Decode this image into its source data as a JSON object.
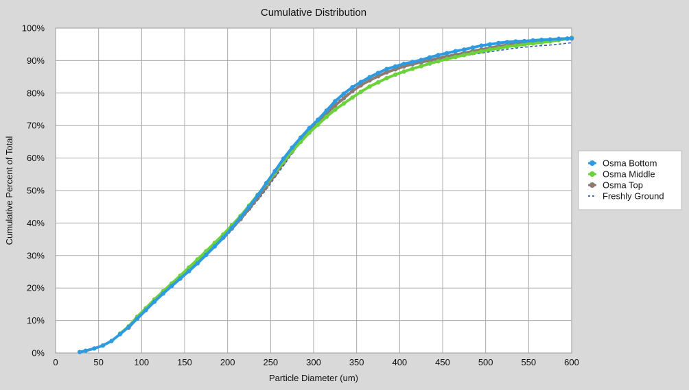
{
  "chart_data": {
    "type": "line",
    "title": "Cumulative Distribution",
    "xlabel": "Particle Diameter (um)",
    "ylabel": "Cumulative Percent of Total",
    "xlim": [
      0,
      600
    ],
    "ylim": [
      0,
      100
    ],
    "x_ticks": [
      0,
      50,
      100,
      150,
      200,
      250,
      300,
      350,
      400,
      450,
      500,
      550,
      600
    ],
    "x_tick_labels": [
      "0",
      "50",
      "100",
      "150",
      "200",
      "250",
      "300",
      "350",
      "400",
      "450",
      "500",
      "550",
      "600"
    ],
    "y_ticks": [
      0,
      10,
      20,
      30,
      40,
      50,
      60,
      70,
      80,
      90,
      100
    ],
    "y_tick_labels": [
      "0%",
      "10%",
      "20%",
      "30%",
      "40%",
      "50%",
      "60%",
      "70%",
      "80%",
      "90%",
      "100%"
    ],
    "grid": true,
    "legend_position": "right",
    "series": [
      {
        "name": "Osma Bottom",
        "color": "#2e9be0",
        "style": "solid-markers",
        "points": [
          [
            28,
            0.3
          ],
          [
            35,
            0.7
          ],
          [
            45,
            1.4
          ],
          [
            55,
            2.3
          ],
          [
            65,
            3.7
          ],
          [
            75,
            5.8
          ],
          [
            85,
            8.0
          ],
          [
            95,
            10.6
          ],
          [
            105,
            13.2
          ],
          [
            115,
            15.8
          ],
          [
            125,
            18.3
          ],
          [
            135,
            20.6
          ],
          [
            145,
            22.9
          ],
          [
            155,
            25.2
          ],
          [
            165,
            27.6
          ],
          [
            175,
            30.2
          ],
          [
            185,
            32.8
          ],
          [
            195,
            35.5
          ],
          [
            205,
            38.5
          ],
          [
            215,
            41.7
          ],
          [
            225,
            45.0
          ],
          [
            235,
            48.5
          ],
          [
            245,
            52.3
          ],
          [
            255,
            56.0
          ],
          [
            265,
            59.8
          ],
          [
            275,
            63.2
          ],
          [
            285,
            66.3
          ],
          [
            295,
            69.2
          ],
          [
            305,
            71.8
          ],
          [
            315,
            74.6
          ],
          [
            325,
            77.5
          ],
          [
            335,
            79.8
          ],
          [
            345,
            81.8
          ],
          [
            355,
            83.4
          ],
          [
            365,
            84.9
          ],
          [
            375,
            86.2
          ],
          [
            385,
            87.4
          ],
          [
            395,
            88.2
          ],
          [
            405,
            89.0
          ],
          [
            415,
            89.6
          ],
          [
            425,
            90.2
          ],
          [
            435,
            91.0
          ],
          [
            445,
            91.7
          ],
          [
            455,
            92.3
          ],
          [
            465,
            92.9
          ],
          [
            475,
            93.4
          ],
          [
            485,
            94.0
          ],
          [
            495,
            94.6
          ],
          [
            505,
            95.0
          ],
          [
            515,
            95.4
          ],
          [
            525,
            95.7
          ],
          [
            535,
            95.9
          ],
          [
            545,
            96.0
          ],
          [
            555,
            96.2
          ],
          [
            565,
            96.4
          ],
          [
            575,
            96.5
          ],
          [
            585,
            96.7
          ],
          [
            595,
            96.8
          ],
          [
            600,
            96.9
          ]
        ]
      },
      {
        "name": "Osma Middle",
        "color": "#6cd23c",
        "style": "solid-markers",
        "points": [
          [
            75,
            6.0
          ],
          [
            85,
            8.2
          ],
          [
            95,
            11.2
          ],
          [
            105,
            13.8
          ],
          [
            115,
            16.5
          ],
          [
            125,
            19.0
          ],
          [
            135,
            21.4
          ],
          [
            145,
            23.8
          ],
          [
            155,
            26.3
          ],
          [
            165,
            28.8
          ],
          [
            175,
            31.3
          ],
          [
            185,
            33.9
          ],
          [
            195,
            36.5
          ],
          [
            205,
            39.3
          ],
          [
            215,
            42.2
          ],
          [
            225,
            45.4
          ],
          [
            235,
            48.7
          ],
          [
            245,
            52.0
          ],
          [
            255,
            55.5
          ],
          [
            265,
            58.9
          ],
          [
            275,
            62.1
          ],
          [
            285,
            65.0
          ],
          [
            295,
            67.8
          ],
          [
            305,
            70.3
          ],
          [
            315,
            72.7
          ],
          [
            325,
            74.9
          ],
          [
            335,
            76.8
          ],
          [
            345,
            78.6
          ],
          [
            355,
            80.4
          ],
          [
            365,
            82.0
          ],
          [
            375,
            83.3
          ],
          [
            385,
            84.6
          ],
          [
            395,
            85.7
          ],
          [
            405,
            86.6
          ],
          [
            415,
            87.5
          ],
          [
            425,
            88.3
          ],
          [
            435,
            89.1
          ],
          [
            445,
            89.8
          ],
          [
            455,
            90.5
          ],
          [
            465,
            91.1
          ],
          [
            475,
            91.7
          ],
          [
            485,
            92.3
          ],
          [
            495,
            92.8
          ],
          [
            505,
            93.4
          ],
          [
            515,
            93.8
          ],
          [
            525,
            94.3
          ],
          [
            535,
            94.6
          ],
          [
            545,
            95.0
          ],
          [
            555,
            95.3
          ],
          [
            565,
            95.6
          ],
          [
            575,
            95.9
          ],
          [
            585,
            96.3
          ],
          [
            595,
            96.7
          ],
          [
            600,
            97.0
          ]
        ]
      },
      {
        "name": "Osma Top",
        "color": "#8e7a72",
        "style": "solid-markers",
        "points": [
          [
            85,
            7.8
          ],
          [
            95,
            10.8
          ],
          [
            105,
            13.5
          ],
          [
            115,
            16.2
          ],
          [
            125,
            18.8
          ],
          [
            135,
            21.1
          ],
          [
            145,
            23.3
          ],
          [
            155,
            25.6
          ],
          [
            165,
            28.0
          ],
          [
            175,
            30.5
          ],
          [
            185,
            33.0
          ],
          [
            195,
            35.6
          ],
          [
            205,
            38.3
          ],
          [
            215,
            41.2
          ],
          [
            225,
            44.4
          ],
          [
            235,
            47.7
          ],
          [
            245,
            51.1
          ],
          [
            255,
            54.8
          ],
          [
            265,
            58.5
          ],
          [
            275,
            62.0
          ],
          [
            285,
            65.2
          ],
          [
            295,
            68.3
          ],
          [
            305,
            71.0
          ],
          [
            315,
            73.7
          ],
          [
            325,
            76.2
          ],
          [
            335,
            78.4
          ],
          [
            345,
            80.6
          ],
          [
            355,
            82.4
          ],
          [
            365,
            83.9
          ],
          [
            375,
            85.2
          ],
          [
            385,
            86.4
          ],
          [
            395,
            87.3
          ],
          [
            405,
            88.2
          ],
          [
            415,
            88.9
          ],
          [
            425,
            89.5
          ],
          [
            435,
            90.1
          ],
          [
            445,
            90.7
          ],
          [
            455,
            91.3
          ],
          [
            465,
            91.8
          ],
          [
            475,
            92.3
          ],
          [
            485,
            92.9
          ],
          [
            495,
            93.4
          ],
          [
            505,
            93.9
          ],
          [
            515,
            94.4
          ],
          [
            525,
            94.8
          ],
          [
            535,
            95.2
          ],
          [
            545,
            95.5
          ],
          [
            555,
            95.8
          ],
          [
            565,
            96.1
          ],
          [
            575,
            96.3
          ],
          [
            585,
            96.5
          ],
          [
            595,
            96.7
          ],
          [
            600,
            96.8
          ]
        ]
      },
      {
        "name": "Freshly Ground",
        "color": "#2f5fa8",
        "style": "dashed",
        "points": [
          [
            40,
            1.0
          ],
          [
            60,
            2.8
          ],
          [
            80,
            6.8
          ],
          [
            100,
            12.0
          ],
          [
            120,
            17.0
          ],
          [
            140,
            21.6
          ],
          [
            160,
            26.2
          ],
          [
            180,
            31.2
          ],
          [
            200,
            36.4
          ],
          [
            220,
            42.3
          ],
          [
            240,
            48.6
          ],
          [
            260,
            55.8
          ],
          [
            280,
            63.2
          ],
          [
            300,
            70.0
          ],
          [
            320,
            75.7
          ],
          [
            340,
            79.9
          ],
          [
            360,
            83.2
          ],
          [
            380,
            85.8
          ],
          [
            400,
            87.7
          ],
          [
            420,
            89.0
          ],
          [
            440,
            90.0
          ],
          [
            460,
            90.9
          ],
          [
            480,
            91.7
          ],
          [
            500,
            92.5
          ],
          [
            520,
            93.3
          ],
          [
            540,
            94.0
          ],
          [
            560,
            94.5
          ],
          [
            580,
            94.9
          ],
          [
            600,
            95.5
          ]
        ]
      }
    ]
  }
}
